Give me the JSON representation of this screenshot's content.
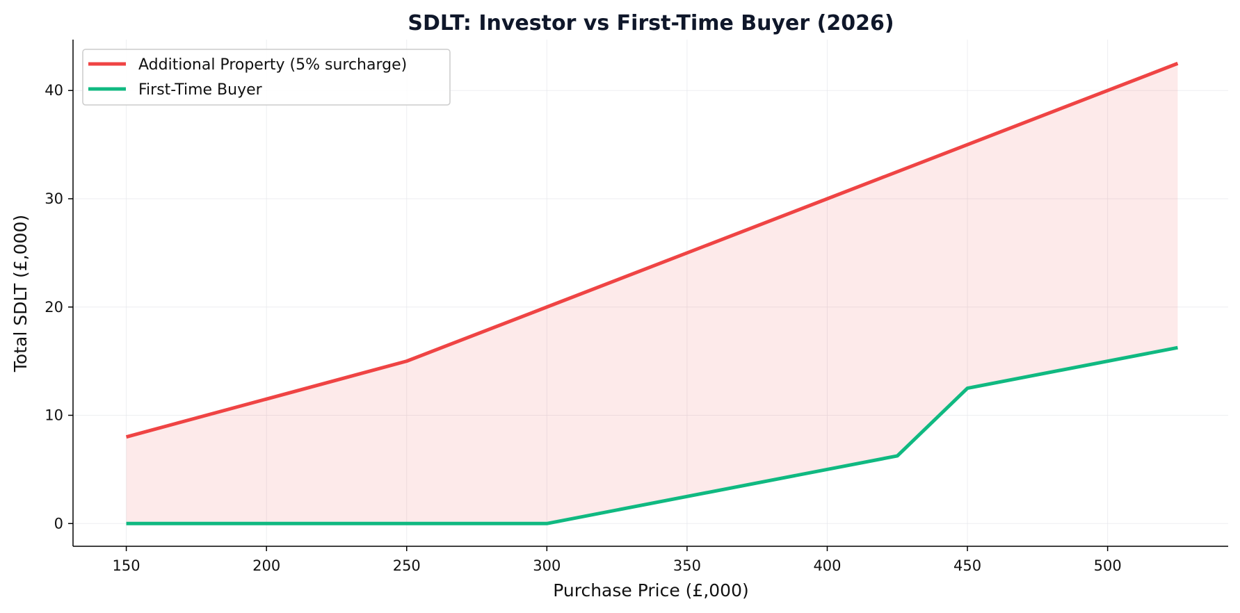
{
  "chart_data": {
    "type": "line",
    "title": "SDLT: Investor vs First-Time Buyer (2026)",
    "xlabel": "Purchase Price (£,000)",
    "ylabel": "Total SDLT (£,000)",
    "xlim": [
      131,
      543
    ],
    "ylim": [
      -2.1,
      44.7
    ],
    "xticks": [
      150,
      200,
      250,
      300,
      350,
      400,
      450,
      500
    ],
    "yticks": [
      0,
      10,
      20,
      30,
      40
    ],
    "grid": true,
    "legend_position": "top-left",
    "fill_between": {
      "color": "#ef4444",
      "opacity": 0.11
    },
    "series": [
      {
        "name": "Additional Property (5% surcharge)",
        "color": "#ef4444",
        "x": [
          150,
          250,
          300,
          400,
          525
        ],
        "y": [
          8,
          15,
          20,
          30,
          42.5
        ]
      },
      {
        "name": "First-Time Buyer",
        "color": "#10b981",
        "x": [
          150,
          300,
          425,
          450,
          525
        ],
        "y": [
          0,
          0,
          6.25,
          12.5,
          16.25
        ]
      }
    ]
  }
}
